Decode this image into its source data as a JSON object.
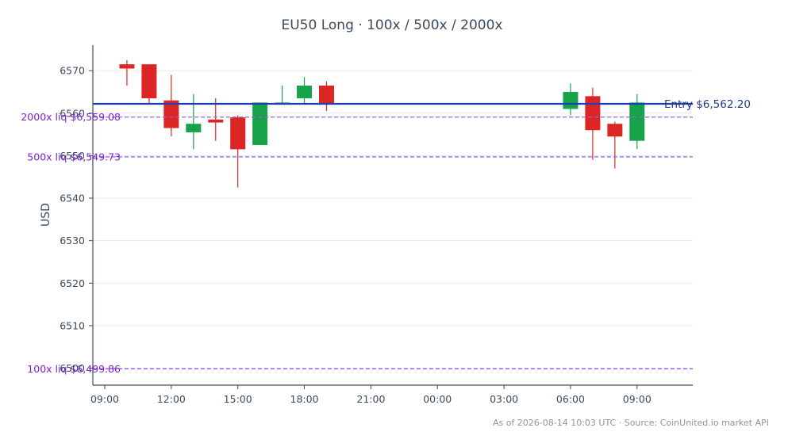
{
  "chart_data": {
    "type": "candlestick",
    "title": "EU50 Long · 100x / 500x / 2000x",
    "ylabel": "USD",
    "xlabel": "",
    "ylim": [
      6496,
      6576
    ],
    "y_ticks": [
      6500,
      6510,
      6520,
      6530,
      6540,
      6550,
      6560,
      6570
    ],
    "x_tick_labels": [
      "09:00",
      "12:00",
      "15:00",
      "18:00",
      "21:00",
      "00:00",
      "03:00",
      "06:00",
      "09:00"
    ],
    "grid": "horizontal",
    "colors": {
      "up": "#16a34a",
      "down": "#dc2626",
      "entry": "#1e40af",
      "liquidation": "#7e22ce",
      "axis": "#3b4a5c"
    },
    "candles": [
      {
        "t": 1,
        "open": 6571.5,
        "high": 6572.5,
        "low": 6566.5,
        "close": 6570.5
      },
      {
        "t": 2,
        "open": 6571.5,
        "high": 6571.5,
        "low": 6562.0,
        "close": 6563.5
      },
      {
        "t": 3,
        "open": 6563.0,
        "high": 6569.0,
        "low": 6554.5,
        "close": 6556.5
      },
      {
        "t": 4,
        "open": 6555.5,
        "high": 6564.5,
        "low": 6551.5,
        "close": 6557.5
      },
      {
        "t": 5,
        "open": 6558.5,
        "high": 6563.5,
        "low": 6553.5,
        "close": 6557.8
      },
      {
        "t": 6,
        "open": 6559.0,
        "high": 6559.5,
        "low": 6542.5,
        "close": 6551.5
      },
      {
        "t": 7,
        "open": 6552.5,
        "high": 6562.5,
        "low": 6552.5,
        "close": 6562.5
      },
      {
        "t": 8,
        "open": 6562.0,
        "high": 6566.5,
        "low": 6562.0,
        "close": 6562.5
      },
      {
        "t": 9,
        "open": 6563.5,
        "high": 6568.5,
        "low": 6562.0,
        "close": 6566.5
      },
      {
        "t": 10,
        "open": 6566.5,
        "high": 6567.5,
        "low": 6560.5,
        "close": 6562.0
      },
      {
        "t": 21,
        "open": 6561.0,
        "high": 6567.0,
        "low": 6559.5,
        "close": 6565.0
      },
      {
        "t": 22,
        "open": 6564.0,
        "high": 6566.0,
        "low": 6549.0,
        "close": 6556.0
      },
      {
        "t": 23,
        "open": 6557.5,
        "high": 6558.0,
        "low": 6547.0,
        "close": 6554.5
      },
      {
        "t": 24,
        "open": 6553.5,
        "high": 6564.5,
        "low": 6551.5,
        "close": 6562.5
      }
    ],
    "entry": {
      "value": 6562.2,
      "label": "Entry $6,562.20"
    },
    "liquidations": [
      {
        "value": 6559.08,
        "label": "2000x liq $6,559.08"
      },
      {
        "value": 6549.73,
        "label": "500x liq $6,549.73"
      },
      {
        "value": 6499.86,
        "label": "100x liq $6,499.86"
      }
    ]
  },
  "footer": "As of 2026-08-14 10:03 UTC · Source: CoinUnited.io market API"
}
